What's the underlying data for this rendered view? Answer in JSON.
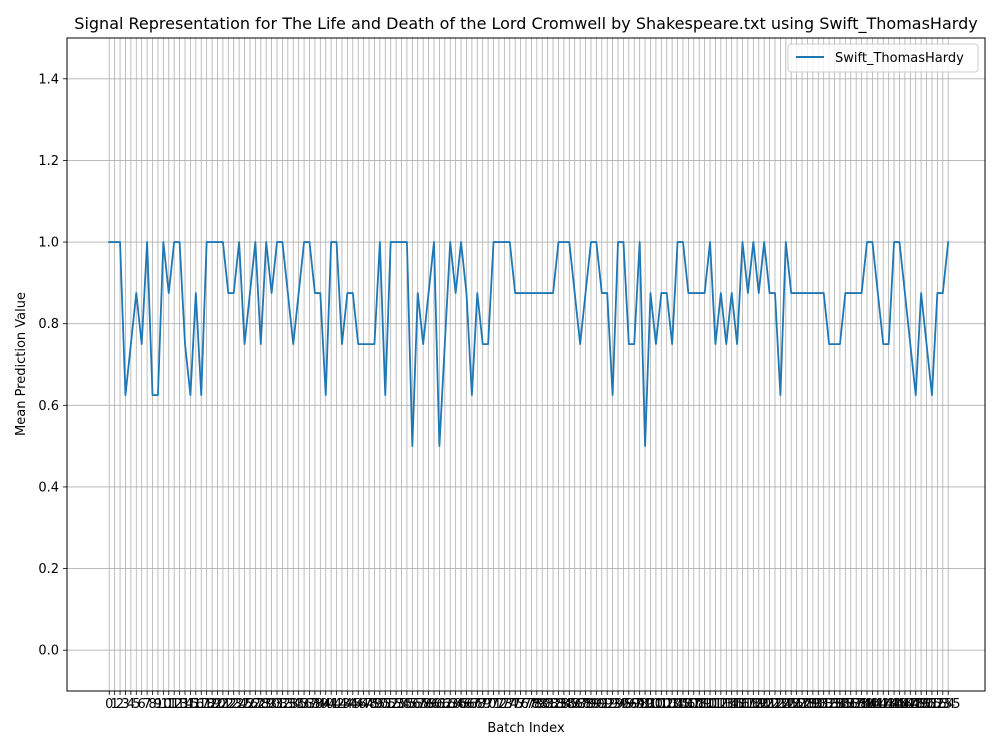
{
  "chart_data": {
    "type": "line",
    "title": "Signal Representation for The Life and Death of the Lord Cromwell by Shakespeare.txt using Swift_ThomasHardy",
    "xlabel": "Batch Index",
    "ylabel": "Mean Prediction Value",
    "xlim": [
      -7.8,
      161.8
    ],
    "ylim": [
      -0.1,
      1.5
    ],
    "yticks": [
      0.0,
      0.2,
      0.4,
      0.6,
      0.8,
      1.0,
      1.2,
      1.4
    ],
    "ytick_labels": [
      "0.0",
      "0.2",
      "0.4",
      "0.6",
      "0.8",
      "1.0",
      "1.2",
      "1.4"
    ],
    "grid": true,
    "legend_position": "top-right",
    "series": [
      {
        "name": "Swift_ThomasHardy",
        "color": "#1f77b4",
        "y": [
          1,
          1,
          1,
          0.625,
          0.75,
          0.875,
          0.75,
          1,
          0.625,
          0.625,
          1,
          0.875,
          1,
          1,
          0.75,
          0.625,
          0.875,
          0.625,
          1,
          1,
          1,
          1,
          0.875,
          0.875,
          1,
          0.75,
          0.875,
          1,
          0.75,
          1,
          0.875,
          1,
          1,
          0.875,
          0.75,
          0.875,
          1,
          1,
          0.875,
          0.875,
          0.625,
          1,
          1,
          0.75,
          0.875,
          0.875,
          0.75,
          0.75,
          0.75,
          0.75,
          1,
          0.625,
          1,
          1,
          1,
          1,
          0.5,
          0.875,
          0.75,
          0.875,
          1,
          0.5,
          0.75,
          1,
          0.875,
          1,
          0.875,
          0.625,
          0.875,
          0.75,
          0.75,
          1,
          1,
          1,
          1,
          0.875,
          0.875,
          0.875,
          0.875,
          0.875,
          0.875,
          0.875,
          0.875,
          1,
          1,
          1,
          0.875,
          0.75,
          0.875,
          1,
          1,
          0.875,
          0.875,
          0.625,
          1,
          1,
          0.75,
          0.75,
          1,
          0.5,
          0.875,
          0.75,
          0.875,
          0.875,
          0.75,
          1,
          1,
          0.875,
          0.875,
          0.875,
          0.875,
          1,
          0.75,
          0.875,
          0.75,
          0.875,
          0.75,
          1,
          0.875,
          1,
          0.875,
          1,
          0.875,
          0.875,
          0.625,
          1,
          0.875,
          0.875,
          0.875,
          0.875,
          0.875,
          0.875,
          0.875,
          0.75,
          0.75,
          0.75,
          0.875,
          0.875,
          0.875,
          0.875,
          1,
          1,
          0.875,
          0.75,
          0.75,
          1,
          1,
          0.875,
          0.75,
          0.625,
          0.875,
          0.75,
          0.625,
          0.875,
          0.875,
          1
        ]
      }
    ]
  }
}
